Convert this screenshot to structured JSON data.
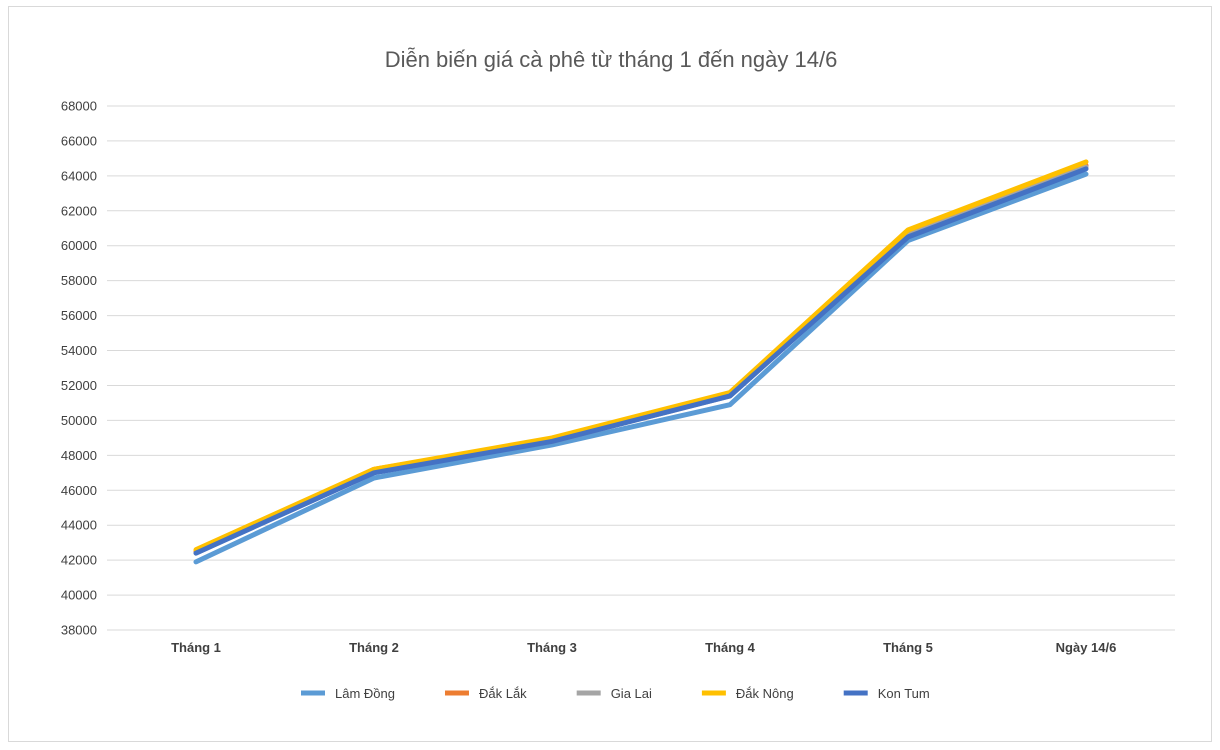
{
  "chart_data": {
    "type": "line",
    "title": "Diễn biến giá cà phê từ tháng 1 đến ngày 14/6",
    "xlabel": "",
    "ylabel": "",
    "categories": [
      "Tháng 1",
      "Tháng 2",
      "Tháng 3",
      "Tháng 4",
      "Tháng 5",
      "Ngày 14/6"
    ],
    "ylim": [
      38000,
      68000
    ],
    "yticks": [
      38000,
      40000,
      42000,
      44000,
      46000,
      48000,
      50000,
      52000,
      54000,
      56000,
      58000,
      60000,
      62000,
      64000,
      66000,
      68000
    ],
    "grid": "horizontal",
    "legend_position": "bottom",
    "series": [
      {
        "name": "Lâm Đồng",
        "color": "#5b9bd5",
        "values": [
          41900,
          46700,
          48600,
          50900,
          60300,
          64100
        ]
      },
      {
        "name": "Đắk Lắk",
        "color": "#ed7d31",
        "values": [
          42500,
          47200,
          48900,
          51500,
          60700,
          64600
        ]
      },
      {
        "name": "Gia Lai",
        "color": "#a5a5a5",
        "values": [
          42400,
          47100,
          48800,
          51400,
          60600,
          64500
        ]
      },
      {
        "name": "Đắk Nông",
        "color": "#ffc000",
        "values": [
          42600,
          47200,
          49000,
          51600,
          60900,
          64800
        ]
      },
      {
        "name": "Kon Tum",
        "color": "#4472c4",
        "values": [
          42400,
          47000,
          48800,
          51400,
          60500,
          64400
        ]
      }
    ]
  }
}
